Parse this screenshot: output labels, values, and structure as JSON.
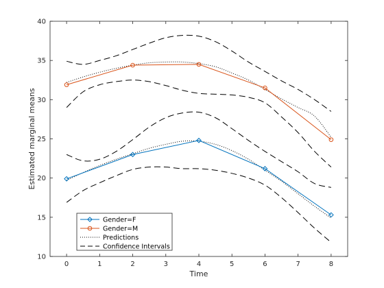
{
  "chart_data": {
    "type": "line",
    "xlabel": "Time",
    "ylabel": "Estimated marginal means",
    "xlim": [
      -0.5,
      8.5
    ],
    "ylim": [
      10,
      40
    ],
    "xticks": [
      0,
      1,
      2,
      3,
      4,
      5,
      6,
      7,
      8
    ],
    "yticks": [
      10,
      15,
      20,
      25,
      30,
      35,
      40
    ],
    "grid": false,
    "legend_position": "bottom-left",
    "series": [
      {
        "name": "Gender=F",
        "kind": "observed",
        "color": "#0072BD",
        "marker": "diamond",
        "x": [
          0,
          2,
          4,
          6,
          8
        ],
        "y": [
          19.9,
          23.0,
          24.8,
          21.2,
          15.3
        ]
      },
      {
        "name": "Gender=M",
        "kind": "observed",
        "color": "#D95319",
        "marker": "circle",
        "x": [
          0,
          2,
          4,
          6,
          8
        ],
        "y": [
          31.9,
          34.4,
          34.5,
          31.5,
          24.9
        ]
      },
      {
        "name": "Predictions",
        "kind": "prediction",
        "color": "#000000",
        "curves": [
          {
            "x": [
              0,
              0.5,
              1,
              1.5,
              2,
              2.5,
              3,
              3.5,
              4,
              4.5,
              5,
              5.5,
              6,
              6.5,
              7,
              7.5,
              8
            ],
            "y": [
              19.7,
              20.7,
              21.6,
              22.4,
              23.1,
              23.8,
              24.3,
              24.7,
              24.7,
              24.3,
              23.5,
              22.4,
              21.0,
              19.6,
              18.0,
              16.4,
              14.9
            ]
          },
          {
            "x": [
              0,
              0.5,
              1,
              1.5,
              2,
              2.5,
              3,
              3.5,
              4,
              4.5,
              5,
              5.5,
              6,
              6.5,
              7,
              7.5,
              8
            ],
            "y": [
              32.2,
              32.9,
              33.5,
              34.0,
              34.4,
              34.7,
              34.8,
              34.8,
              34.6,
              34.2,
              33.4,
              32.5,
              31.3,
              30.1,
              29.0,
              27.9,
              25.2
            ]
          }
        ]
      },
      {
        "name": "Confidence Intervals",
        "kind": "interval",
        "color": "#000000",
        "curves": [
          {
            "x": [
              0,
              0.5,
              1,
              1.5,
              2,
              2.5,
              3,
              3.5,
              4,
              4.5,
              5,
              5.5,
              6,
              6.5,
              7,
              7.5,
              8
            ],
            "y": [
              34.9,
              34.5,
              35.0,
              35.6,
              36.4,
              37.2,
              37.9,
              38.2,
              38.1,
              37.4,
              36.2,
              34.8,
              33.6,
              32.4,
              31.3,
              30.0,
              28.5
            ]
          },
          {
            "x": [
              0,
              0.5,
              1,
              1.5,
              2,
              2.5,
              3,
              3.5,
              4,
              4.5,
              5,
              5.5,
              6,
              6.5,
              7,
              7.5,
              8
            ],
            "y": [
              29.0,
              31.0,
              31.9,
              32.3,
              32.5,
              32.3,
              31.8,
              31.2,
              30.8,
              30.7,
              30.6,
              30.3,
              29.6,
              27.8,
              25.8,
              23.4,
              21.4
            ]
          },
          {
            "x": [
              0,
              0.5,
              1,
              1.5,
              2,
              2.5,
              3,
              3.5,
              4,
              4.5,
              5,
              5.5,
              6,
              6.5,
              7,
              7.5,
              8
            ],
            "y": [
              23.0,
              22.2,
              22.4,
              23.4,
              24.9,
              26.5,
              27.7,
              28.3,
              28.4,
              27.7,
              26.3,
              24.8,
              23.4,
              22.1,
              20.8,
              19.3,
              18.8
            ]
          },
          {
            "x": [
              0,
              0.5,
              1,
              1.5,
              2,
              2.5,
              3,
              3.5,
              4,
              4.5,
              5,
              5.5,
              6,
              6.5,
              7,
              7.5,
              8
            ],
            "y": [
              16.9,
              18.4,
              19.4,
              20.3,
              21.1,
              21.4,
              21.4,
              21.2,
              21.2,
              21.0,
              20.6,
              20.0,
              19.1,
              17.5,
              15.6,
              13.6,
              11.8
            ]
          }
        ]
      }
    ]
  }
}
